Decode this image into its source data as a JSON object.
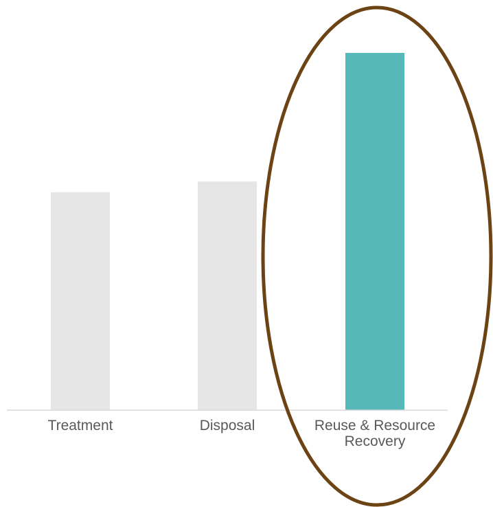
{
  "chart_data": {
    "type": "bar",
    "title": "",
    "xlabel": "",
    "ylabel": "",
    "categories": [
      [
        "Treatment"
      ],
      [
        "Disposal"
      ],
      [
        "Reuse & Resource",
        "Recovery"
      ]
    ],
    "values": [
      61,
      64,
      100
    ],
    "ylim": [
      0,
      100
    ],
    "grid": false,
    "legend": "none",
    "colors": [
      "#e6e6e6",
      "#e6e6e6",
      "#57b8ba"
    ],
    "axis_color": "#d9d9d9",
    "label_color": "#595959",
    "highlight": {
      "category_index": 2,
      "shape": "ellipse",
      "stroke": "#6b4314"
    }
  }
}
